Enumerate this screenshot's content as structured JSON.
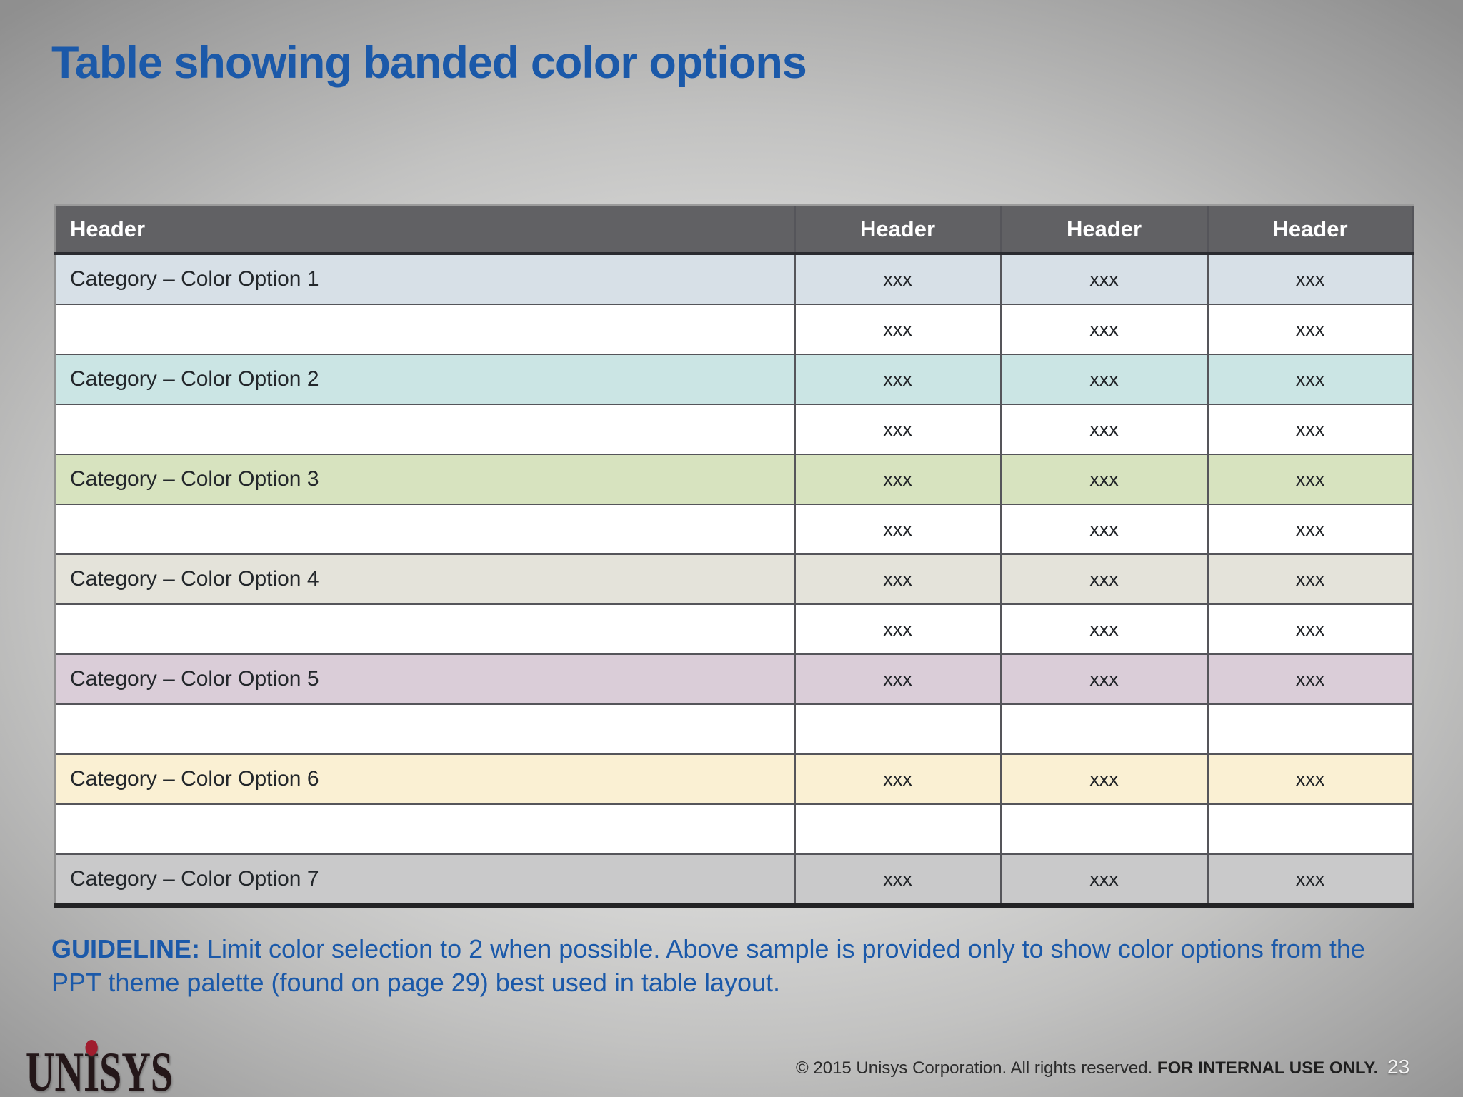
{
  "slide": {
    "title": "Table showing banded color options",
    "page_number": "23",
    "guideline": {
      "label": "GUIDELINE:",
      "text": " Limit color selection to 2 when possible. Above sample is provided only to show color options from the PPT theme palette (found on page 29) best used in table layout."
    },
    "footer": {
      "copyright": "© 2015 Unisys Corporation. All rights reserved. ",
      "internal_use": "FOR INTERNAL USE ONLY."
    },
    "logo": {
      "un": "UN",
      "i": "I",
      "sys": "SYS"
    }
  },
  "colors": {
    "title_blue": "#1B59A9",
    "header_fill": "#616164",
    "header_text": "#FFFFFF",
    "logo_dot_red": "#A01D2E"
  },
  "table": {
    "headers": [
      "Header",
      "Header",
      "Header",
      "Header"
    ],
    "rows": [
      {
        "label": "Category – Color Option 1",
        "values": [
          "xxx",
          "xxx",
          "xxx"
        ],
        "bg": "#D7E0E7"
      },
      {
        "label": "",
        "values": [
          "xxx",
          "xxx",
          "xxx"
        ],
        "bg": "#FFFFFF"
      },
      {
        "label": "Category – Color Option 2",
        "values": [
          "xxx",
          "xxx",
          "xxx"
        ],
        "bg": "#CBE5E4"
      },
      {
        "label": "",
        "values": [
          "xxx",
          "xxx",
          "xxx"
        ],
        "bg": "#FFFFFF"
      },
      {
        "label": "Category – Color Option 3",
        "values": [
          "xxx",
          "xxx",
          "xxx"
        ],
        "bg": "#D7E3BF"
      },
      {
        "label": "",
        "values": [
          "xxx",
          "xxx",
          "xxx"
        ],
        "bg": "#FFFFFF"
      },
      {
        "label": "Category – Color Option 4",
        "values": [
          "xxx",
          "xxx",
          "xxx"
        ],
        "bg": "#E4E3DA"
      },
      {
        "label": "",
        "values": [
          "xxx",
          "xxx",
          "xxx"
        ],
        "bg": "#FFFFFF"
      },
      {
        "label": "Category – Color Option 5",
        "values": [
          "xxx",
          "xxx",
          "xxx"
        ],
        "bg": "#DACDD8"
      },
      {
        "label": "",
        "values": [
          "",
          "",
          ""
        ],
        "bg": "#FFFFFF"
      },
      {
        "label": "Category – Color Option 6",
        "values": [
          "xxx",
          "xxx",
          "xxx"
        ],
        "bg": "#FAF0D3"
      },
      {
        "label": "",
        "values": [
          "",
          "",
          ""
        ],
        "bg": "#FFFFFF"
      },
      {
        "label": "Category – Color Option 7",
        "values": [
          "xxx",
          "xxx",
          "xxx"
        ],
        "bg": "#C9C9CA"
      }
    ]
  }
}
